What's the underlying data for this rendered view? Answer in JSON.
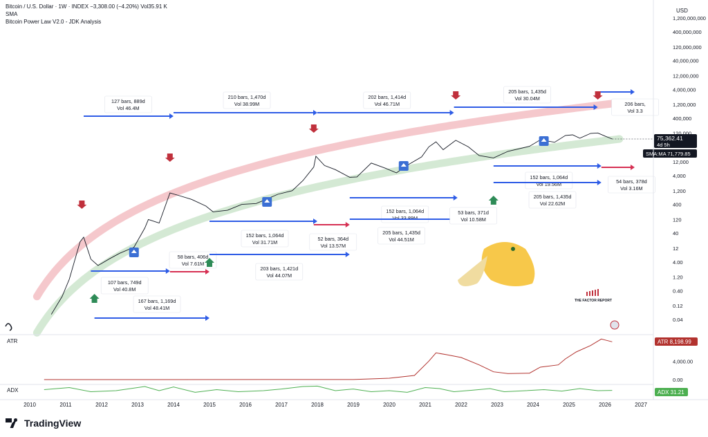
{
  "header": {
    "symbol_line": "Bitcoin / U.S. Dollar · 1W · INDEX  −3,308.00 (−4.20%)  Vol35.91 K",
    "sma_label": "SMA",
    "indicator_label": "Bitcoin Power Law V2.0 - JDK Analysis"
  },
  "brand": {
    "name": "TradingView"
  },
  "watermark": {
    "text": "THE FACTOR REPORT"
  },
  "chart_data": {
    "type": "line",
    "title": "Bitcoin / U.S. Dollar · 1W · INDEX",
    "x_ticks": [
      "2010",
      "2011",
      "2012",
      "2013",
      "2014",
      "2015",
      "2016",
      "2017",
      "2018",
      "2019",
      "2020",
      "2021",
      "2022",
      "2023",
      "2024",
      "2025",
      "2026",
      "2027"
    ],
    "price_axis": {
      "unit": "USD",
      "log_scale": true,
      "ticks": [
        "1,200,000,000",
        "400,000,000",
        "120,000,000",
        "40,000,000",
        "12,000,000",
        "4,000,000",
        "1,200,000",
        "400,000",
        "120,000",
        "12,000",
        "4,000",
        "1,200",
        "400",
        "120",
        "40",
        "12",
        "4.00",
        "1.20",
        "0.40",
        "0.12",
        "0.04"
      ]
    },
    "price_series": {
      "name": "BTCUSD",
      "points": [
        [
          2010.6,
          0.06
        ],
        [
          2010.9,
          0.25
        ],
        [
          2011.1,
          1
        ],
        [
          2011.4,
          20
        ],
        [
          2011.5,
          29
        ],
        [
          2011.7,
          5
        ],
        [
          2011.9,
          3
        ],
        [
          2012.2,
          5
        ],
        [
          2012.5,
          8
        ],
        [
          2012.9,
          13
        ],
        [
          2013.2,
          60
        ],
        [
          2013.3,
          120
        ],
        [
          2013.6,
          90
        ],
        [
          2013.9,
          1000
        ],
        [
          2014.1,
          850
        ],
        [
          2014.5,
          600
        ],
        [
          2014.9,
          350
        ],
        [
          2015.1,
          220
        ],
        [
          2015.5,
          250
        ],
        [
          2015.9,
          400
        ],
        [
          2016.3,
          430
        ],
        [
          2016.6,
          620
        ],
        [
          2016.9,
          900
        ],
        [
          2017.3,
          1200
        ],
        [
          2017.6,
          2700
        ],
        [
          2017.9,
          8000
        ],
        [
          2017.96,
          19000
        ],
        [
          2018.2,
          9000
        ],
        [
          2018.5,
          6500
        ],
        [
          2018.9,
          3500
        ],
        [
          2019.1,
          3600
        ],
        [
          2019.5,
          11000
        ],
        [
          2019.9,
          7200
        ],
        [
          2020.2,
          5000
        ],
        [
          2020.5,
          9200
        ],
        [
          2020.9,
          18000
        ],
        [
          2021.1,
          40000
        ],
        [
          2021.3,
          60000
        ],
        [
          2021.5,
          32000
        ],
        [
          2021.85,
          68000
        ],
        [
          2022.2,
          40000
        ],
        [
          2022.5,
          20000
        ],
        [
          2022.9,
          16500
        ],
        [
          2023.3,
          28000
        ],
        [
          2023.9,
          42000
        ],
        [
          2024.2,
          70000
        ],
        [
          2024.6,
          58000
        ],
        [
          2024.9,
          100000
        ],
        [
          2025.1,
          105000
        ],
        [
          2025.3,
          80000
        ],
        [
          2025.6,
          118000
        ],
        [
          2025.8,
          122000
        ],
        [
          2026.0,
          95000
        ],
        [
          2026.2,
          75362.41
        ]
      ]
    },
    "current_price": {
      "value": "75,362.41",
      "countdown": "4d 5h"
    },
    "sma": {
      "label": "SMA:MA",
      "value": "71,779.85"
    },
    "bands": [
      {
        "name": "upper band",
        "color": "#f2b6bb"
      },
      {
        "name": "lower band",
        "color": "#cde5cd"
      }
    ],
    "cycles": [
      {
        "bars": "127 bars, 889d",
        "vol": "Vol 46.4M"
      },
      {
        "bars": "210 bars, 1,470d",
        "vol": "Vol 38.99M"
      },
      {
        "bars": "202 bars, 1,414d",
        "vol": "Vol 46.71M"
      },
      {
        "bars": "205 bars, 1,435d",
        "vol": "Vol 30.04M"
      },
      {
        "bars": "206 bars,",
        "vol": "Vol 3.3"
      },
      {
        "bars": "58 bars, 406d",
        "vol": "Vol 7.61M"
      },
      {
        "bars": "107 bars, 749d",
        "vol": "Vol 40.8M"
      },
      {
        "bars": "167 bars, 1,169d",
        "vol": "Vol 48.41M"
      },
      {
        "bars": "152 bars, 1,064d",
        "vol": "Vol 31.71M"
      },
      {
        "bars": "203 bars, 1,421d",
        "vol": "Vol 44.07M"
      },
      {
        "bars": "52 bars, 364d",
        "vol": "Vol 13.57M"
      },
      {
        "bars": "152 bars, 1,064d",
        "vol": "Vol 33.89M"
      },
      {
        "bars": "205 bars, 1,435d",
        "vol": "Vol 44.51M"
      },
      {
        "bars": "53 bars, 371d",
        "vol": "Vol 10.58M"
      },
      {
        "bars": "152 bars, 1,064d",
        "vol": "Vol 19.56M"
      },
      {
        "bars": "205 bars, 1,435d",
        "vol": "Vol 22.62M"
      },
      {
        "bars": "54 bars, 378d",
        "vol": "Vol 3.16M"
      }
    ],
    "atr": {
      "label": "ATR",
      "value": "8,198.99",
      "ticks": [
        "4,000.00",
        "0.00"
      ],
      "points": [
        [
          2010.4,
          0
        ],
        [
          2019.0,
          20
        ],
        [
          2020.0,
          300
        ],
        [
          2020.7,
          900
        ],
        [
          2021.1,
          4000
        ],
        [
          2021.3,
          5800
        ],
        [
          2021.6,
          5400
        ],
        [
          2022.0,
          4800
        ],
        [
          2022.5,
          3200
        ],
        [
          2022.9,
          1700
        ],
        [
          2023.3,
          1300
        ],
        [
          2023.9,
          1400
        ],
        [
          2024.2,
          2700
        ],
        [
          2024.7,
          3200
        ],
        [
          2024.9,
          4500
        ],
        [
          2025.2,
          6000
        ],
        [
          2025.6,
          7400
        ],
        [
          2025.9,
          8800
        ],
        [
          2026.0,
          8600
        ],
        [
          2026.2,
          8200
        ]
      ]
    },
    "adx": {
      "label": "ADX",
      "value": "31.21",
      "points": [
        [
          2010.4,
          35
        ],
        [
          2011.1,
          45
        ],
        [
          2011.7,
          25
        ],
        [
          2012.4,
          30
        ],
        [
          2013.2,
          50
        ],
        [
          2013.6,
          30
        ],
        [
          2014.0,
          48
        ],
        [
          2014.6,
          22
        ],
        [
          2015.2,
          35
        ],
        [
          2015.8,
          25
        ],
        [
          2016.5,
          30
        ],
        [
          2017.0,
          38
        ],
        [
          2017.6,
          50
        ],
        [
          2018.0,
          52
        ],
        [
          2018.5,
          30
        ],
        [
          2019.0,
          38
        ],
        [
          2019.5,
          25
        ],
        [
          2020.0,
          30
        ],
        [
          2020.5,
          22
        ],
        [
          2021.0,
          45
        ],
        [
          2021.4,
          40
        ],
        [
          2021.8,
          25
        ],
        [
          2022.3,
          32
        ],
        [
          2022.8,
          40
        ],
        [
          2023.2,
          25
        ],
        [
          2023.8,
          30
        ],
        [
          2024.3,
          35
        ],
        [
          2024.8,
          28
        ],
        [
          2025.3,
          40
        ],
        [
          2025.8,
          30
        ],
        [
          2026.2,
          31.21
        ]
      ]
    }
  }
}
